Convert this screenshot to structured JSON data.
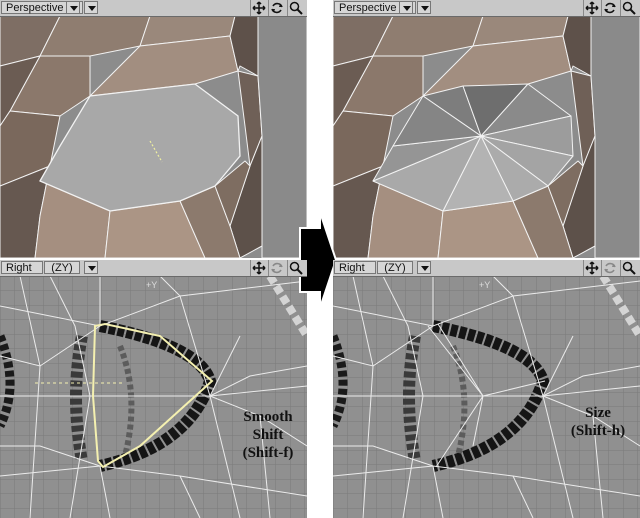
{
  "viewports": {
    "top_left": {
      "title": "Perspective"
    },
    "top_right": {
      "title": "Perspective"
    },
    "bottom_left": {
      "title": "Right",
      "axis": "(ZY)",
      "axis_label": "+Y"
    },
    "bottom_right": {
      "title": "Right",
      "axis": "(ZY)",
      "axis_label": "+Y"
    }
  },
  "captions": {
    "smooth_shift": [
      "Smooth",
      "Shift",
      "(Shift-f)"
    ],
    "size": [
      "Size",
      "(Shift-h)"
    ]
  },
  "icons": [
    "move-icon",
    "rotate-icon",
    "zoom-icon",
    "dropdown-arrow-icon",
    "big-right-arrow-icon"
  ]
}
